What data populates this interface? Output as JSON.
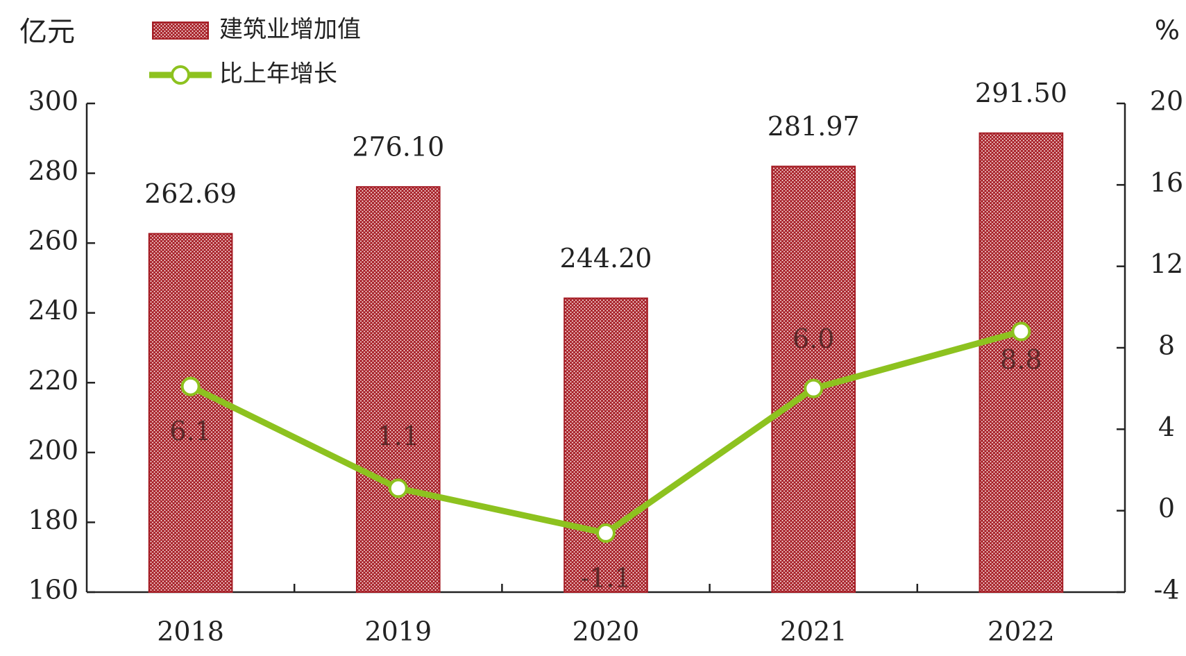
{
  "chart_data": {
    "type": "bar_line",
    "y_label": "亿元",
    "y2_label": "%",
    "categories": [
      "2018",
      "2019",
      "2020",
      "2021",
      "2022"
    ],
    "series": [
      {
        "name": "建筑业增加值",
        "type": "bar",
        "color": "#a51c24",
        "values": [
          262.69,
          276.1,
          244.2,
          281.97,
          291.5
        ],
        "value_labels": [
          "262.69",
          "276.10",
          "244.20",
          "281.97",
          "291.50"
        ]
      },
      {
        "name": "比上年增长",
        "type": "line",
        "axis": "y2",
        "color": "#8dc21f",
        "values": [
          6.1,
          1.1,
          -1.1,
          6.0,
          8.8
        ],
        "value_labels": [
          "6.1",
          "1.1",
          "-1.1",
          "6.0",
          "8.8"
        ]
      }
    ],
    "ylim": [
      160,
      300
    ],
    "yticks": [
      160,
      180,
      200,
      220,
      240,
      260,
      280,
      300
    ],
    "y2lim": [
      -4,
      20
    ],
    "y2ticks": [
      -4,
      0,
      4,
      8,
      12,
      16,
      20
    ],
    "legend": "top-left"
  }
}
